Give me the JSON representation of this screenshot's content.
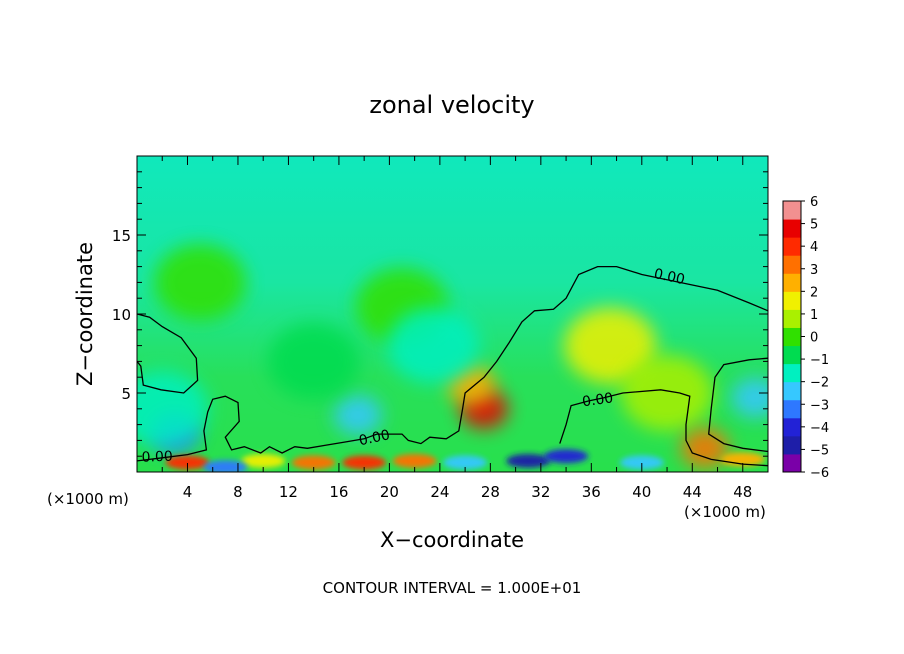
{
  "chart_data": {
    "type": "heatmap",
    "title": "zonal velocity",
    "xlabel": "X−coordinate",
    "ylabel": "Z−coordinate",
    "x_unit_left": "(×1000 m)",
    "x_unit_right": "(×1000 m)",
    "footer": "CONTOUR INTERVAL = 1.000E+01",
    "xlim": [
      0,
      50
    ],
    "ylim": [
      0,
      20
    ],
    "x_ticks": [
      4,
      8,
      12,
      16,
      20,
      24,
      28,
      32,
      36,
      40,
      44,
      48
    ],
    "y_ticks": [
      5,
      10,
      15
    ],
    "colorbar": {
      "ticks": [
        6,
        5,
        4,
        3,
        2,
        1,
        0,
        -1,
        -2,
        -3,
        -4,
        -5,
        -6
      ],
      "tick_labels": [
        "6",
        "5",
        "4",
        "3",
        "2",
        "1",
        "0",
        "−1",
        "−2",
        "−3",
        "−4",
        "−5",
        "−6"
      ],
      "colors": [
        "#7a00a8",
        "#1e1ea8",
        "#2222d6",
        "#2e78ff",
        "#36c8ff",
        "#00f0c0",
        "#00dc50",
        "#30e000",
        "#aaf000",
        "#f0f000",
        "#ffb000",
        "#ff7000",
        "#ff2a00",
        "#e80000",
        "#f29090"
      ]
    },
    "field_anomalies": [
      {
        "x": 27.5,
        "z": 4.0,
        "value": 4.5
      },
      {
        "x": 26.5,
        "z": 5.5,
        "value": 2.5
      },
      {
        "x": 37.5,
        "z": 8.0,
        "value": 1.2
      },
      {
        "x": 21.0,
        "z": 10.5,
        "value": 0.2
      },
      {
        "x": 42.0,
        "z": 5.0,
        "value": 0.8
      },
      {
        "x": 3.0,
        "z": 2.5,
        "value": -3.2
      },
      {
        "x": 17.5,
        "z": 3.6,
        "value": -2.8
      },
      {
        "x": 49.0,
        "z": 4.7,
        "value": -2.6
      },
      {
        "x": 23.5,
        "z": 8.0,
        "value": -1.3
      },
      {
        "x": 14.0,
        "z": 7.0,
        "value": -0.6
      },
      {
        "x": 5.0,
        "z": 12.0,
        "value": -0.3
      },
      {
        "x": 2.0,
        "z": 4.0,
        "value": -1.4
      },
      {
        "x": 45.0,
        "z": 1.5,
        "value": 3.5
      },
      {
        "x": 18.0,
        "z": 0.6,
        "value": 4.0
      },
      {
        "x": 4.0,
        "z": 0.6,
        "value": 3.8
      },
      {
        "x": 31.0,
        "z": 0.7,
        "value": -4.5
      },
      {
        "x": 34.0,
        "z": 1.0,
        "value": -4.2
      },
      {
        "x": 40.0,
        "z": 0.6,
        "value": -2.8
      },
      {
        "x": 10.0,
        "z": 0.7,
        "value": 1.8
      },
      {
        "x": 14.0,
        "z": 0.6,
        "value": 3.2
      },
      {
        "x": 22.0,
        "z": 0.7,
        "value": 3.0
      },
      {
        "x": 26.0,
        "z": 0.6,
        "value": -2.4
      },
      {
        "x": 48.0,
        "z": 0.8,
        "value": 2.5
      },
      {
        "x": 7.0,
        "z": 0.3,
        "value": -3.2
      }
    ],
    "contours": [
      {
        "label": "0.00",
        "points": [
          [
            0,
            10.0
          ],
          [
            1,
            9.8
          ],
          [
            2,
            9.2
          ],
          [
            3.5,
            8.5
          ],
          [
            4.7,
            7.2
          ],
          [
            4.8,
            5.8
          ],
          [
            3.7,
            5.0
          ],
          [
            1.9,
            5.2
          ],
          [
            0.5,
            5.5
          ],
          [
            0.3,
            6.7
          ],
          [
            0,
            7.0
          ]
        ]
      },
      {
        "label": "0.00",
        "points": [
          [
            0,
            0.7
          ],
          [
            2,
            0.9
          ],
          [
            4,
            1.1
          ],
          [
            5.5,
            1.4
          ],
          [
            5.3,
            2.6
          ],
          [
            5.6,
            3.8
          ],
          [
            6.0,
            4.6
          ],
          [
            7.0,
            4.8
          ],
          [
            8.0,
            4.4
          ],
          [
            8.1,
            3.2
          ],
          [
            7.0,
            2.2
          ],
          [
            7.5,
            1.4
          ],
          [
            8.5,
            1.6
          ],
          [
            9.8,
            1.2
          ],
          [
            10.5,
            1.6
          ],
          [
            11.5,
            1.2
          ],
          [
            12.5,
            1.6
          ],
          [
            13.5,
            1.5
          ],
          [
            15,
            1.7
          ],
          [
            16.5,
            1.9
          ],
          [
            18,
            2.1
          ],
          [
            19,
            2.4
          ],
          [
            20,
            2.4
          ],
          [
            21.0,
            2.4
          ],
          [
            21.5,
            2.0
          ],
          [
            22.5,
            1.8
          ],
          [
            23.2,
            2.2
          ],
          [
            24.5,
            2.1
          ],
          [
            25.5,
            2.6
          ],
          [
            25.8,
            4.0
          ],
          [
            26.0,
            5.0
          ],
          [
            27.5,
            6.0
          ],
          [
            28.5,
            7.0
          ],
          [
            29.5,
            8.2
          ],
          [
            30.5,
            9.5
          ],
          [
            31.5,
            10.2
          ],
          [
            33.0,
            10.3
          ],
          [
            34.0,
            11.0
          ],
          [
            35.0,
            12.5
          ],
          [
            36.5,
            13.0
          ],
          [
            38.0,
            13.0
          ],
          [
            40.0,
            12.5
          ],
          [
            43.0,
            12.0
          ],
          [
            46.0,
            11.5
          ],
          [
            48.5,
            10.7
          ],
          [
            50,
            10.2
          ]
        ]
      },
      {
        "label": "0.00",
        "points": [
          [
            33.5,
            1.8
          ],
          [
            34,
            3.0
          ],
          [
            34.4,
            4.2
          ],
          [
            35.8,
            4.5
          ],
          [
            37.0,
            4.7
          ],
          [
            38.5,
            5.0
          ],
          [
            41.5,
            5.2
          ],
          [
            43.0,
            5.0
          ],
          [
            43.8,
            4.8
          ],
          [
            43.5,
            3.0
          ],
          [
            43.5,
            2.0
          ],
          [
            44,
            1.2
          ],
          [
            45.5,
            0.8
          ],
          [
            48,
            0.5
          ],
          [
            50,
            0.4
          ]
        ]
      },
      {
        "label": "",
        "points": [
          [
            50,
            7.2
          ],
          [
            48.5,
            7.1
          ],
          [
            46.5,
            6.8
          ],
          [
            45.8,
            6.0
          ],
          [
            45.5,
            4.0
          ],
          [
            45.3,
            2.4
          ],
          [
            46.5,
            1.8
          ],
          [
            48.0,
            1.5
          ],
          [
            50,
            1.3
          ]
        ]
      }
    ]
  }
}
